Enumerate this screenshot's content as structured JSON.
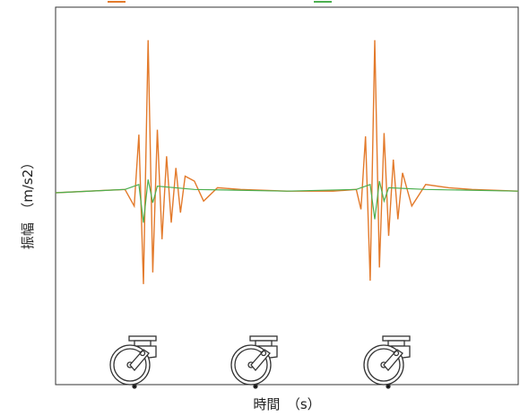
{
  "chart_data": {
    "type": "line",
    "title": "",
    "xlabel": "時間　（s）",
    "ylabel": "振幅　（m/s2）",
    "grid": false,
    "legend": "top",
    "x_range": [
      0,
      100
    ],
    "y_range": [
      -1,
      1
    ],
    "series": [
      {
        "name": "",
        "color": "#e37a2b",
        "x": [
          0,
          15,
          17,
          18,
          19,
          20,
          21,
          22,
          23,
          24,
          25,
          26,
          27,
          28,
          30,
          32,
          35,
          40,
          50,
          60,
          65,
          66,
          67,
          68,
          69,
          70,
          71,
          72,
          73,
          74,
          75,
          77,
          80,
          85,
          90,
          100
        ],
        "values": [
          0,
          0.02,
          -0.08,
          0.35,
          -0.55,
          0.92,
          -0.48,
          0.38,
          -0.28,
          0.22,
          -0.18,
          0.15,
          -0.12,
          0.1,
          0.07,
          -0.05,
          0.03,
          0.02,
          0.01,
          0.01,
          0.02,
          -0.1,
          0.34,
          -0.53,
          0.92,
          -0.45,
          0.36,
          -0.26,
          0.2,
          -0.16,
          0.12,
          -0.08,
          0.05,
          0.03,
          0.02,
          0.01
        ]
      },
      {
        "name": "",
        "color": "#4caf50",
        "x": [
          0,
          15,
          18,
          19,
          20,
          21,
          22,
          30,
          50,
          65,
          68,
          69,
          70,
          71,
          72,
          80,
          100
        ],
        "values": [
          0,
          0.02,
          0.05,
          -0.18,
          0.08,
          -0.06,
          0.04,
          0.02,
          0.01,
          0.02,
          0.05,
          -0.16,
          0.07,
          -0.05,
          0.03,
          0.02,
          0.01
        ]
      }
    ],
    "annotations": [
      "caster-wheel",
      "caster-wheel",
      "caster-wheel"
    ]
  }
}
